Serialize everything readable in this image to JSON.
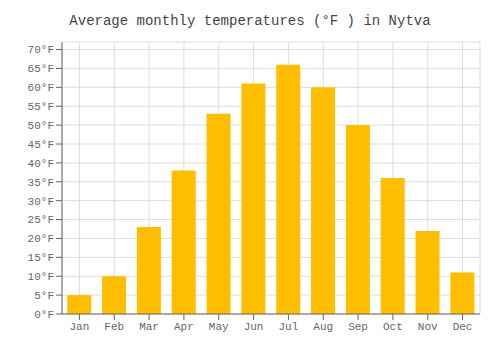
{
  "chart_data": {
    "type": "bar",
    "title": "Average monthly temperatures (°F ) in Nytva",
    "categories": [
      "Jan",
      "Feb",
      "Mar",
      "Apr",
      "May",
      "Jun",
      "Jul",
      "Aug",
      "Sep",
      "Oct",
      "Nov",
      "Dec"
    ],
    "values": [
      5,
      10,
      23,
      38,
      53,
      61,
      66,
      60,
      50,
      36,
      22,
      11
    ],
    "color": "#FFBE00",
    "ylim": [
      0,
      72
    ],
    "yticks": [
      {
        "value": 0,
        "label": "0°F"
      },
      {
        "value": 5,
        "label": "5°F"
      },
      {
        "value": 10,
        "label": "10°F"
      },
      {
        "value": 15,
        "label": "15°F"
      },
      {
        "value": 20,
        "label": "20°F"
      },
      {
        "value": 25,
        "label": "25°F"
      },
      {
        "value": 30,
        "label": "30°F"
      },
      {
        "value": 35,
        "label": "35°F"
      },
      {
        "value": 40,
        "label": "40°F"
      },
      {
        "value": 45,
        "label": "45°F"
      },
      {
        "value": 50,
        "label": "50°F"
      },
      {
        "value": 55,
        "label": "55°F"
      },
      {
        "value": 60,
        "label": "60°F"
      },
      {
        "value": 65,
        "label": "65°F"
      },
      {
        "value": 70,
        "label": "70°F"
      }
    ],
    "grid": true
  }
}
